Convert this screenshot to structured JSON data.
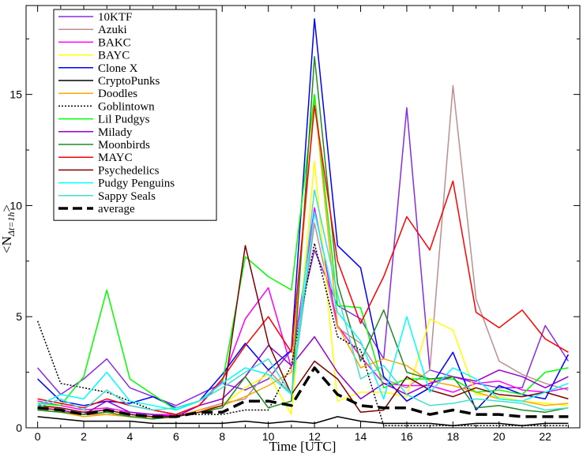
{
  "chart_data": {
    "type": "line",
    "title": "",
    "xlabel": "Time [UTC]",
    "ylabel_main": "<N",
    "ylabel_sub": "Δt=1h",
    "ylabel_end": ">",
    "xlim": [
      -0.5,
      23.5
    ],
    "ylim": [
      0,
      19
    ],
    "xticks": [
      0,
      2,
      4,
      6,
      8,
      10,
      12,
      14,
      16,
      18,
      20,
      22
    ],
    "xtick_labels": [
      "0",
      "2",
      "4",
      "6",
      "8",
      "10",
      "12",
      "14",
      "16",
      "18",
      "20",
      "22"
    ],
    "yticks": [
      0,
      5,
      10,
      15
    ],
    "ytick_labels": [
      "0",
      "5",
      "10",
      "15"
    ],
    "grid": false,
    "legend_position": "top-left",
    "x": [
      0,
      1,
      2,
      3,
      4,
      5,
      6,
      7,
      8,
      9,
      10,
      11,
      12,
      13,
      14,
      15,
      16,
      17,
      18,
      19,
      20,
      21,
      22,
      23
    ],
    "series": [
      {
        "name": "10KTF",
        "color": "#8a2be2",
        "dash": "solid",
        "values": [
          2.7,
          1.5,
          2.2,
          3.1,
          1.8,
          1.4,
          1.0,
          1.5,
          2.0,
          1.7,
          2.2,
          3.5,
          8.0,
          5.5,
          4.9,
          3.1,
          14.4,
          2.6,
          2.3,
          2.0,
          1.8,
          1.8,
          4.6,
          3.0
        ]
      },
      {
        "name": "Azuki",
        "color": "#bc8f8f",
        "dash": "solid",
        "values": [
          0.9,
          0.8,
          0.6,
          0.6,
          0.5,
          0.5,
          0.5,
          0.8,
          1.1,
          1.3,
          2.6,
          1.5,
          9.2,
          4.5,
          3.8,
          2.2,
          1.8,
          2.6,
          15.4,
          5.8,
          3.0,
          2.4,
          2.0,
          1.7
        ]
      },
      {
        "name": "BAKC",
        "color": "#ff00ff",
        "dash": "solid",
        "values": [
          1.2,
          1.0,
          0.8,
          0.9,
          0.7,
          0.6,
          0.6,
          1.0,
          2.1,
          4.9,
          6.3,
          2.7,
          9.9,
          4.6,
          3.2,
          2.0,
          1.9,
          1.9,
          1.6,
          2.0,
          2.1,
          1.7,
          1.6,
          1.8
        ]
      },
      {
        "name": "BAYC",
        "color": "#ffff00",
        "dash": "solid",
        "values": [
          1.0,
          0.8,
          0.6,
          0.7,
          0.5,
          0.5,
          0.5,
          0.7,
          1.0,
          1.8,
          2.4,
          0.6,
          12.0,
          1.2,
          1.6,
          1.6,
          1.4,
          4.9,
          4.4,
          1.5,
          1.4,
          1.2,
          1.1,
          1.0
        ]
      },
      {
        "name": "Clone X",
        "color": "#0000ff",
        "dash": "solid",
        "values": [
          2.2,
          1.2,
          1.0,
          1.2,
          1.1,
          1.4,
          0.9,
          1.2,
          2.4,
          3.8,
          2.6,
          3.5,
          18.4,
          8.2,
          7.2,
          2.3,
          1.2,
          1.8,
          3.4,
          0.8,
          1.9,
          1.5,
          1.3,
          3.3
        ]
      },
      {
        "name": "CryptoPunks",
        "color": "#000000",
        "dash": "solid",
        "values": [
          0.5,
          0.4,
          0.3,
          0.3,
          0.3,
          0.2,
          0.2,
          0.2,
          0.2,
          0.3,
          0.2,
          0.3,
          0.2,
          0.5,
          0.3,
          0.2,
          0.2,
          0.2,
          0.1,
          0.2,
          0.2,
          0.1,
          0.2,
          0.2
        ]
      },
      {
        "name": "Doodles",
        "color": "#ffa500",
        "dash": "solid",
        "values": [
          0.8,
          0.7,
          0.5,
          0.6,
          0.5,
          0.4,
          0.5,
          0.8,
          1.0,
          1.4,
          1.9,
          2.5,
          14.8,
          4.6,
          2.7,
          3.1,
          2.8,
          2.1,
          1.9,
          1.6,
          1.3,
          1.2,
          1.0,
          1.1
        ]
      },
      {
        "name": "Goblintown",
        "color": "#000000",
        "dash": "dotted",
        "values": [
          4.8,
          2.0,
          1.8,
          1.6,
          1.2,
          0.8,
          0.6,
          0.6,
          0.6,
          0.8,
          0.8,
          2.8,
          8.3,
          4.1,
          3.5,
          0.1,
          0.1,
          0.1,
          0.1,
          0.1,
          0.1,
          0.1,
          0.1,
          0.1
        ]
      },
      {
        "name": "Lil Pudgys",
        "color": "#00ff00",
        "dash": "solid",
        "values": [
          1.1,
          1.0,
          2.3,
          6.2,
          2.2,
          1.5,
          0.8,
          1.2,
          2.0,
          7.7,
          6.8,
          6.2,
          15.0,
          5.5,
          5.4,
          1.8,
          2.2,
          2.2,
          2.2,
          1.6,
          1.7,
          1.5,
          2.5,
          2.7
        ]
      },
      {
        "name": "Milady",
        "color": "#9400d3",
        "dash": "solid",
        "values": [
          0.9,
          0.8,
          0.6,
          1.2,
          0.7,
          0.6,
          0.5,
          1.0,
          1.3,
          2.3,
          3.7,
          2.8,
          4.1,
          2.5,
          1.3,
          2.0,
          1.5,
          2.0,
          2.3,
          2.1,
          2.6,
          2.3,
          1.8,
          2.3
        ]
      },
      {
        "name": "Moonbirds",
        "color": "#228b22",
        "dash": "solid",
        "values": [
          0.8,
          0.7,
          0.6,
          0.7,
          0.5,
          0.4,
          0.5,
          0.7,
          0.9,
          2.3,
          0.9,
          1.2,
          16.7,
          6.5,
          3.0,
          5.3,
          2.5,
          2.2,
          2.3,
          0.9,
          1.0,
          0.8,
          0.7,
          0.9
        ]
      },
      {
        "name": "MAYC",
        "color": "#ff0000",
        "dash": "solid",
        "values": [
          1.3,
          1.1,
          0.9,
          1.3,
          1.0,
          0.8,
          0.6,
          1.0,
          2.2,
          3.7,
          5.0,
          3.4,
          14.5,
          7.5,
          4.7,
          6.8,
          9.5,
          8.0,
          11.1,
          5.2,
          4.5,
          5.3,
          4.0,
          3.4
        ]
      },
      {
        "name": "Psychedelics",
        "color": "#800000",
        "dash": "solid",
        "values": [
          1.0,
          0.9,
          0.7,
          0.8,
          0.6,
          0.5,
          0.5,
          0.7,
          1.0,
          8.2,
          3.8,
          1.5,
          3.0,
          2.2,
          0.7,
          0.8,
          2.3,
          1.7,
          1.4,
          1.8,
          1.5,
          1.4,
          1.6,
          1.3
        ]
      },
      {
        "name": "Pudgy Penguins",
        "color": "#00ffff",
        "dash": "solid",
        "values": [
          1.0,
          1.5,
          1.3,
          2.5,
          1.2,
          1.0,
          0.8,
          1.2,
          2.0,
          2.7,
          2.4,
          1.5,
          9.7,
          5.2,
          3.9,
          1.3,
          5.0,
          1.6,
          2.7,
          2.2,
          1.3,
          1.2,
          1.6,
          2.0
        ]
      },
      {
        "name": "Sappy Seals",
        "color": "#40e0d0",
        "dash": "solid",
        "values": [
          0.9,
          1.3,
          0.8,
          1.7,
          1.0,
          0.8,
          0.9,
          1.2,
          1.8,
          2.5,
          3.1,
          1.5,
          10.7,
          6.0,
          2.2,
          2.8,
          1.5,
          1.0,
          1.1,
          1.3,
          1.2,
          1.1,
          0.8,
          0.9
        ]
      },
      {
        "name": "average",
        "color": "#000000",
        "dash": "dashed",
        "values": [
          0.9,
          0.8,
          0.6,
          0.8,
          0.6,
          0.5,
          0.5,
          0.7,
          0.7,
          1.2,
          1.2,
          1.0,
          2.7,
          1.5,
          1.0,
          0.9,
          0.9,
          0.6,
          0.8,
          0.6,
          0.6,
          0.5,
          0.5,
          0.5
        ]
      }
    ]
  }
}
